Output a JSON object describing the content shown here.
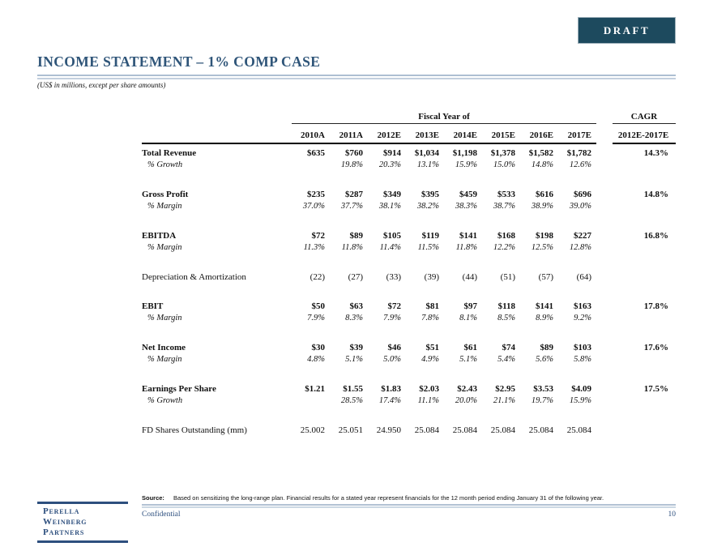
{
  "page": {
    "draft_label": "DRAFT",
    "title": "INCOME STATEMENT – 1% COMP CASE",
    "subtitle": "(US$ in millions, except per share amounts)",
    "colors": {
      "title_navy": "#2F5579",
      "draft_badge_bg": "#1D4A5E",
      "rule_light_blue": "#ADBFD2",
      "footer_blue": "#2D4F7E"
    }
  },
  "table": {
    "group_header": "Fiscal Year of",
    "cagr_title": "CAGR",
    "cagr_subtitle": "2012E-2017E",
    "years": [
      "2010A",
      "2011A",
      "2012E",
      "2013E",
      "2014E",
      "2015E",
      "2016E",
      "2017E"
    ],
    "rows": [
      {
        "type": "total",
        "label": "Total Revenue",
        "values": [
          "$635",
          "$760",
          "$914",
          "$1,034",
          "$1,198",
          "$1,378",
          "$1,582",
          "$1,782"
        ],
        "cagr": "14.3%"
      },
      {
        "type": "sub",
        "label": "% Growth",
        "values": [
          "",
          "19.8%",
          "20.3%",
          "13.1%",
          "15.9%",
          "15.0%",
          "14.8%",
          "12.6%"
        ],
        "cagr": ""
      },
      {
        "type": "spacer"
      },
      {
        "type": "total",
        "label": "Gross Profit",
        "values": [
          "$235",
          "$287",
          "$349",
          "$395",
          "$459",
          "$533",
          "$616",
          "$696"
        ],
        "cagr": "14.8%"
      },
      {
        "type": "sub",
        "label": "% Margin",
        "values": [
          "37.0%",
          "37.7%",
          "38.1%",
          "38.2%",
          "38.3%",
          "38.7%",
          "38.9%",
          "39.0%"
        ],
        "cagr": ""
      },
      {
        "type": "spacer"
      },
      {
        "type": "total",
        "label": "EBITDA",
        "values": [
          "$72",
          "$89",
          "$105",
          "$119",
          "$141",
          "$168",
          "$198",
          "$227"
        ],
        "cagr": "16.8%"
      },
      {
        "type": "sub",
        "label": "% Margin",
        "values": [
          "11.3%",
          "11.8%",
          "11.4%",
          "11.5%",
          "11.8%",
          "12.2%",
          "12.5%",
          "12.8%"
        ],
        "cagr": ""
      },
      {
        "type": "spacer"
      },
      {
        "type": "plain",
        "label": "Depreciation & Amortization",
        "values": [
          "(22)",
          "(27)",
          "(33)",
          "(39)",
          "(44)",
          "(51)",
          "(57)",
          "(64)"
        ],
        "cagr": ""
      },
      {
        "type": "spacer"
      },
      {
        "type": "total",
        "label": "EBIT",
        "values": [
          "$50",
          "$63",
          "$72",
          "$81",
          "$97",
          "$118",
          "$141",
          "$163"
        ],
        "cagr": "17.8%"
      },
      {
        "type": "sub",
        "label": "% Margin",
        "values": [
          "7.9%",
          "8.3%",
          "7.9%",
          "7.8%",
          "8.1%",
          "8.5%",
          "8.9%",
          "9.2%"
        ],
        "cagr": ""
      },
      {
        "type": "spacer"
      },
      {
        "type": "total",
        "label": "Net Income",
        "values": [
          "$30",
          "$39",
          "$46",
          "$51",
          "$61",
          "$74",
          "$89",
          "$103"
        ],
        "cagr": "17.6%"
      },
      {
        "type": "sub",
        "label": "% Margin",
        "values": [
          "4.8%",
          "5.1%",
          "5.0%",
          "4.9%",
          "5.1%",
          "5.4%",
          "5.6%",
          "5.8%"
        ],
        "cagr": ""
      },
      {
        "type": "spacer"
      },
      {
        "type": "total",
        "label": "Earnings Per Share",
        "values": [
          "$1.21",
          "$1.55",
          "$1.83",
          "$2.03",
          "$2.43",
          "$2.95",
          "$3.53",
          "$4.09"
        ],
        "cagr": "17.5%"
      },
      {
        "type": "sub",
        "label": "% Growth",
        "values": [
          "",
          "28.5%",
          "17.4%",
          "11.1%",
          "20.0%",
          "21.1%",
          "19.7%",
          "15.9%"
        ],
        "cagr": ""
      },
      {
        "type": "spacer"
      },
      {
        "type": "plain",
        "label": "FD Shares Outstanding (mm)",
        "values": [
          "25.002",
          "25.051",
          "24.950",
          "25.084",
          "25.084",
          "25.084",
          "25.084",
          "25.084"
        ],
        "cagr": ""
      }
    ]
  },
  "footer": {
    "source_label": "Source:",
    "source_text": "Based on sensitizing the long-range plan. Financial results for a stated year represent financials for the 12 month period ending January 31 of the following year.",
    "confidential": "Confidential",
    "page_number": "10",
    "logo_lines": [
      "Perella",
      "Weinberg",
      "Partners"
    ]
  }
}
